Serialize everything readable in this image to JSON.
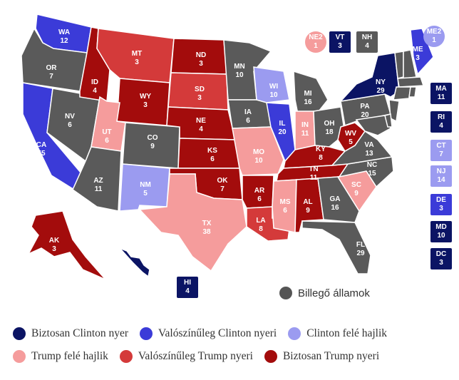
{
  "colors": {
    "safe_clinton": "#0b1464",
    "likely_clinton": "#3b3bd8",
    "lean_clinton": "#9b9bf0",
    "lean_trump": "#f59c9c",
    "likely_trump": "#d43a3a",
    "safe_trump": "#a30c0c",
    "tossup": "#5a5a5a"
  },
  "states": {
    "WA": {
      "abbr": "WA",
      "ev": "12",
      "rating": "likely_clinton"
    },
    "OR": {
      "abbr": "OR",
      "ev": "7",
      "rating": "tossup"
    },
    "CA": {
      "abbr": "CA",
      "ev": "55",
      "rating": "likely_clinton"
    },
    "NV": {
      "abbr": "NV",
      "ev": "6",
      "rating": "tossup"
    },
    "ID": {
      "abbr": "ID",
      "ev": "4",
      "rating": "safe_trump"
    },
    "MT": {
      "abbr": "MT",
      "ev": "3",
      "rating": "likely_trump"
    },
    "WY": {
      "abbr": "WY",
      "ev": "3",
      "rating": "safe_trump"
    },
    "UT": {
      "abbr": "UT",
      "ev": "6",
      "rating": "lean_trump"
    },
    "AZ": {
      "abbr": "AZ",
      "ev": "11",
      "rating": "tossup"
    },
    "CO": {
      "abbr": "CO",
      "ev": "9",
      "rating": "tossup"
    },
    "NM": {
      "abbr": "NM",
      "ev": "5",
      "rating": "lean_clinton"
    },
    "ND": {
      "abbr": "ND",
      "ev": "3",
      "rating": "safe_trump"
    },
    "SD": {
      "abbr": "SD",
      "ev": "3",
      "rating": "likely_trump"
    },
    "NE": {
      "abbr": "NE",
      "ev": "4",
      "rating": "safe_trump"
    },
    "KS": {
      "abbr": "KS",
      "ev": "6",
      "rating": "safe_trump"
    },
    "OK": {
      "abbr": "OK",
      "ev": "7",
      "rating": "safe_trump"
    },
    "TX": {
      "abbr": "TX",
      "ev": "38",
      "rating": "lean_trump"
    },
    "MN": {
      "abbr": "MN",
      "ev": "10",
      "rating": "tossup"
    },
    "IA": {
      "abbr": "IA",
      "ev": "6",
      "rating": "tossup"
    },
    "MO": {
      "abbr": "MO",
      "ev": "10",
      "rating": "lean_trump"
    },
    "AR": {
      "abbr": "AR",
      "ev": "6",
      "rating": "safe_trump"
    },
    "LA": {
      "abbr": "LA",
      "ev": "8",
      "rating": "likely_trump"
    },
    "WI": {
      "abbr": "WI",
      "ev": "10",
      "rating": "lean_clinton"
    },
    "IL": {
      "abbr": "IL",
      "ev": "20",
      "rating": "likely_clinton"
    },
    "MI": {
      "abbr": "MI",
      "ev": "16",
      "rating": "tossup"
    },
    "IN": {
      "abbr": "IN",
      "ev": "11",
      "rating": "lean_trump"
    },
    "OH": {
      "abbr": "OH",
      "ev": "18",
      "rating": "tossup"
    },
    "KY": {
      "abbr": "KY",
      "ev": "8",
      "rating": "safe_trump"
    },
    "TN": {
      "abbr": "TN",
      "ev": "11",
      "rating": "safe_trump"
    },
    "MS": {
      "abbr": "MS",
      "ev": "6",
      "rating": "lean_trump"
    },
    "AL": {
      "abbr": "AL",
      "ev": "9",
      "rating": "safe_trump"
    },
    "GA": {
      "abbr": "GA",
      "ev": "16",
      "rating": "tossup"
    },
    "FL": {
      "abbr": "FL",
      "ev": "29",
      "rating": "tossup"
    },
    "SC": {
      "abbr": "SC",
      "ev": "9",
      "rating": "lean_trump"
    },
    "NC": {
      "abbr": "NC",
      "ev": "15",
      "rating": "tossup"
    },
    "VA": {
      "abbr": "VA",
      "ev": "13",
      "rating": "tossup"
    },
    "WV": {
      "abbr": "WV",
      "ev": "5",
      "rating": "safe_trump"
    },
    "PA": {
      "abbr": "PA",
      "ev": "20",
      "rating": "tossup"
    },
    "NY": {
      "abbr": "NY",
      "ev": "29",
      "rating": "safe_clinton"
    },
    "ME": {
      "abbr": "ME",
      "ev": "3",
      "rating": "likely_clinton"
    },
    "AK": {
      "abbr": "AK",
      "ev": "3",
      "rating": "safe_trump"
    },
    "HI": {
      "abbr": "HI",
      "ev": "4",
      "rating": "safe_clinton"
    }
  },
  "small_states": [
    {
      "abbr": "NE2",
      "ev": "1",
      "rating": "lean_trump"
    },
    {
      "abbr": "VT",
      "ev": "3",
      "rating": "safe_clinton"
    },
    {
      "abbr": "NH",
      "ev": "4",
      "rating": "tossup"
    },
    {
      "abbr": "ME2",
      "ev": "1",
      "rating": "lean_clinton"
    },
    {
      "abbr": "MA",
      "ev": "11",
      "rating": "safe_clinton"
    },
    {
      "abbr": "RI",
      "ev": "4",
      "rating": "safe_clinton"
    },
    {
      "abbr": "CT",
      "ev": "7",
      "rating": "lean_clinton"
    },
    {
      "abbr": "NJ",
      "ev": "14",
      "rating": "lean_clinton"
    },
    {
      "abbr": "DE",
      "ev": "3",
      "rating": "likely_clinton"
    },
    {
      "abbr": "MD",
      "ev": "10",
      "rating": "safe_clinton"
    },
    {
      "abbr": "DC",
      "ev": "3",
      "rating": "safe_clinton"
    }
  ],
  "tossup_label": "Billegő államok",
  "legend": [
    {
      "label": "Biztosan Clinton nyer",
      "rating": "safe_clinton"
    },
    {
      "label": "Valószínűleg Clinton nyeri",
      "rating": "likely_clinton"
    },
    {
      "label": "Clinton felé hajlik",
      "rating": "lean_clinton"
    },
    {
      "label": "Trump felé hajlik",
      "rating": "lean_trump"
    },
    {
      "label": "Valószínűleg Trump nyeri",
      "rating": "likely_trump"
    },
    {
      "label": "Biztosan Trump nyeri",
      "rating": "safe_trump"
    }
  ]
}
